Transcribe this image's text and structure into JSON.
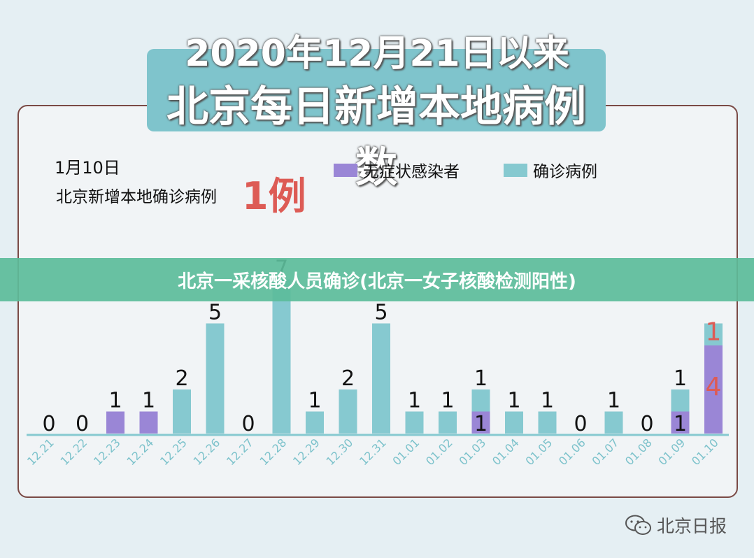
{
  "header": {
    "line1": "2020年12月21日以来",
    "line2": "北京每日新增本地病例数"
  },
  "highlight": {
    "date": "1月10日",
    "label": "北京新增本地确诊病例",
    "value": "1例"
  },
  "banner": "北京一采核酸人员确诊(北京一女子核酸检测阳性)",
  "watermark": "北京日报",
  "colors": {
    "asymptomatic": "#9a86d6",
    "confirmed": "#86c9d0",
    "highlight": "#dd5b55",
    "axis": "#86c9d0"
  },
  "chart_data": {
    "type": "bar",
    "stacked": true,
    "categories": [
      "12.21",
      "12.22",
      "12.23",
      "12.24",
      "12.25",
      "12.26",
      "12.27",
      "12.28",
      "12.29",
      "12.30",
      "12.31",
      "01.01",
      "01.02",
      "01.03",
      "01.04",
      "01.05",
      "01.06",
      "01.07",
      "01.08",
      "01.09",
      "01.10"
    ],
    "series": [
      {
        "name": "无症状感染者",
        "color": "#9a86d6",
        "values": [
          0,
          0,
          1,
          1,
          0,
          0,
          0,
          0,
          0,
          0,
          0,
          0,
          0,
          1,
          0,
          0,
          0,
          0,
          0,
          1,
          4
        ]
      },
      {
        "name": "确诊病例",
        "color": "#86c9d0",
        "values": [
          0,
          0,
          0,
          0,
          2,
          5,
          0,
          7,
          1,
          2,
          5,
          1,
          1,
          1,
          1,
          1,
          0,
          1,
          0,
          1,
          1
        ]
      }
    ],
    "ylim": [
      0,
      7
    ],
    "legend_position": "top-right"
  }
}
